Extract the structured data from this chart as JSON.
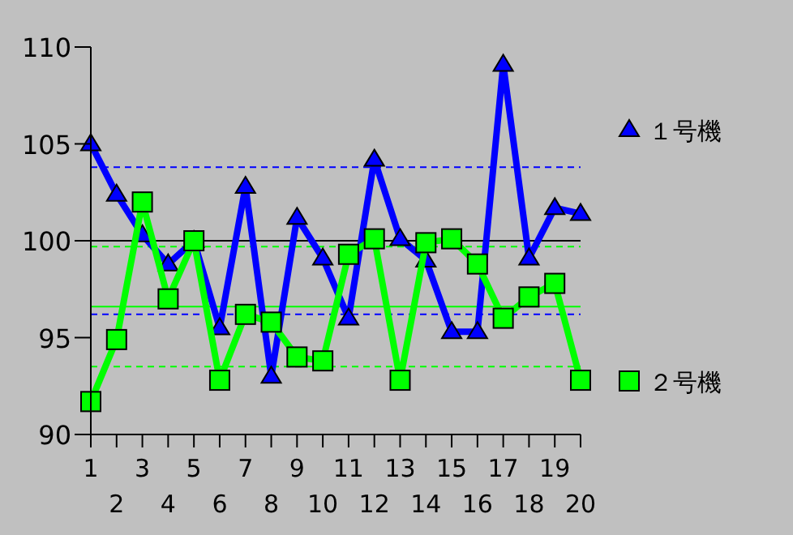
{
  "chart_data": {
    "type": "line",
    "categories": [
      "1",
      "2",
      "3",
      "4",
      "5",
      "6",
      "7",
      "8",
      "9",
      "10",
      "11",
      "12",
      "13",
      "14",
      "15",
      "16",
      "17",
      "18",
      "19",
      "20"
    ],
    "ylim": [
      90,
      110
    ],
    "yticks": [
      90,
      95,
      100,
      105,
      110
    ],
    "legend": "right",
    "grid": false,
    "series": [
      {
        "name": "１号機",
        "color": "#0000ff",
        "marker": "triangle",
        "values": [
          105,
          102.4,
          100.3,
          98.8,
          100,
          95.5,
          102.8,
          93,
          101.2,
          99.1,
          96,
          104.2,
          100.1,
          99,
          95.3,
          95.3,
          109.1,
          99.1,
          101.7,
          101.4
        ]
      },
      {
        "name": "２号機",
        "color": "#00ff00",
        "marker": "square",
        "values": [
          91.7,
          94.9,
          102,
          97,
          100,
          92.8,
          96.2,
          95.8,
          94,
          93.8,
          99.3,
          100.1,
          92.8,
          99.9,
          100.1,
          98.8,
          96,
          97.1,
          97.8,
          92.8
        ]
      }
    ],
    "ref_lines": [
      {
        "axis": "y",
        "value": 103.8,
        "color": "#0000ff",
        "line_style": "dashed"
      },
      {
        "axis": "y",
        "value": 100,
        "color": "#000000",
        "line_style": "solid"
      },
      {
        "axis": "y",
        "value": 96.2,
        "color": "#0000ff",
        "line_style": "dashed"
      },
      {
        "axis": "y",
        "value": 99.7,
        "color": "#00ff00",
        "line_style": "dashed"
      },
      {
        "axis": "y",
        "value": 96.6,
        "color": "#00ff00",
        "line_style": "solid"
      },
      {
        "axis": "y",
        "value": 93.5,
        "color": "#00ff00",
        "line_style": "dashed"
      }
    ]
  }
}
